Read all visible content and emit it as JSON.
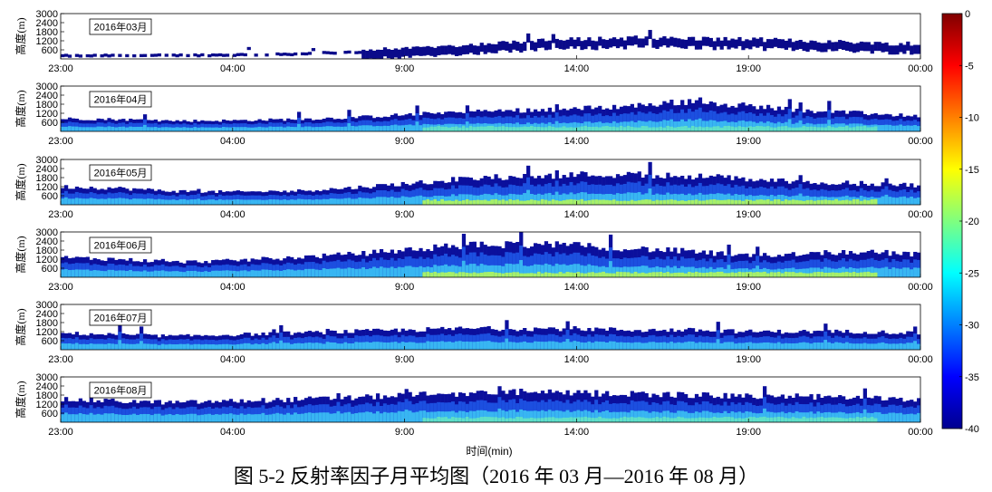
{
  "figure": {
    "caption": "图 5-2 反射率因子月平均图（2016 年 03 月—2016 年 08 月）"
  },
  "chart_data": {
    "type": "heatmap",
    "ylabel": "高度(m)",
    "xlabel": "时间(min)",
    "x_ticks": [
      "23:00",
      "04:00",
      "9:00",
      "14:00",
      "19:00",
      "00:00"
    ],
    "y_ticks": [
      600,
      1200,
      1800,
      2400,
      3000
    ],
    "ylim": [
      0,
      3000
    ],
    "colorbar": {
      "ticks": [
        0,
        -5,
        -10,
        -15,
        -20,
        -25,
        -30,
        -35,
        -40
      ],
      "range": [
        -40,
        0
      ],
      "colormap": "jet"
    },
    "panels": [
      {
        "label": "2016年03月",
        "echo_top_m": [
          300,
          320,
          330,
          360,
          420,
          520,
          700,
          900,
          1150,
          1300,
          1400,
          1350,
          1300,
          1200,
          1100,
          900
        ],
        "sparse": true
      },
      {
        "label": "2016年04月",
        "echo_top_m": [
          850,
          800,
          700,
          720,
          800,
          900,
          1100,
          1300,
          1400,
          1500,
          1700,
          2000,
          1700,
          1400,
          1200,
          1000
        ],
        "sparse": false
      },
      {
        "label": "2016年05月",
        "echo_top_m": [
          1200,
          1100,
          900,
          850,
          900,
          1100,
          1400,
          1700,
          1900,
          2000,
          2000,
          1900,
          1700,
          1500,
          1400,
          1300
        ],
        "sparse": false
      },
      {
        "label": "2016年06月",
        "echo_top_m": [
          1300,
          1200,
          1000,
          1100,
          1300,
          1500,
          1800,
          2100,
          2200,
          2100,
          1900,
          1700,
          1400,
          1600,
          1700,
          1500
        ],
        "sparse": false
      },
      {
        "label": "2016年07月",
        "echo_top_m": [
          1100,
          1000,
          900,
          1000,
          1100,
          1200,
          1300,
          1400,
          1400,
          1400,
          1300,
          1300,
          1200,
          1200,
          1200,
          1100
        ],
        "sparse": false
      },
      {
        "label": "2016年08月",
        "echo_top_m": [
          1500,
          1400,
          1300,
          1400,
          1500,
          1600,
          1800,
          1900,
          2000,
          1900,
          1900,
          1800,
          1700,
          1700,
          1600,
          1500
        ],
        "sparse": false
      }
    ]
  }
}
